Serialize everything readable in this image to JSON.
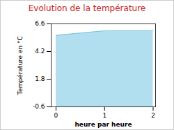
{
  "chart_data": {
    "type": "area",
    "title": "Evolution de la température",
    "x_label": "heure par heure",
    "y_label": "Température en °C",
    "x": [
      0,
      1,
      2
    ],
    "values": [
      5.6,
      6.0,
      6.0
    ],
    "color": "#a8dcee",
    "xlim": [
      -0.1,
      2.05
    ],
    "xticks": [
      0,
      1,
      2
    ],
    "ylim": [
      -0.6,
      6.6
    ],
    "yticks": [
      -0.6,
      1.8,
      4.2,
      6.6
    ]
  }
}
